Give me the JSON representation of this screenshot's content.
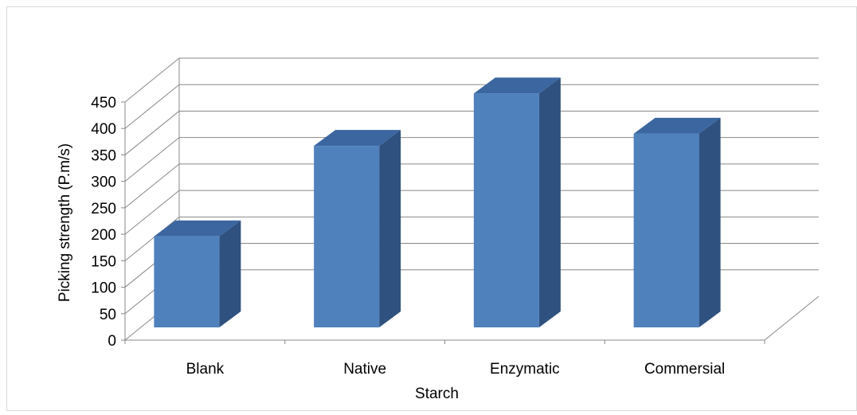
{
  "chart_data": {
    "type": "bar",
    "style": "3d-column",
    "categories": [
      "Blank",
      "Native",
      "Enzymatic",
      "Commersial"
    ],
    "values": [
      172,
      343,
      442,
      366
    ],
    "title": "",
    "xlabel": "Starch",
    "ylabel": "Picking strength  (P.m/s)",
    "ylim": [
      0,
      450
    ],
    "ytick_step": 50,
    "yticks": [
      "0",
      "50",
      "100",
      "150",
      "200",
      "250",
      "300",
      "350",
      "400",
      "450"
    ],
    "grid": true,
    "legend": "none",
    "colors": {
      "bar_front": "#4F81BD",
      "bar_side": "#2F5180",
      "bar_top": "#3B66A0",
      "gridline": "#888888",
      "axis": "#888888",
      "text": "#000000",
      "frame": "#D9D9D9"
    }
  }
}
